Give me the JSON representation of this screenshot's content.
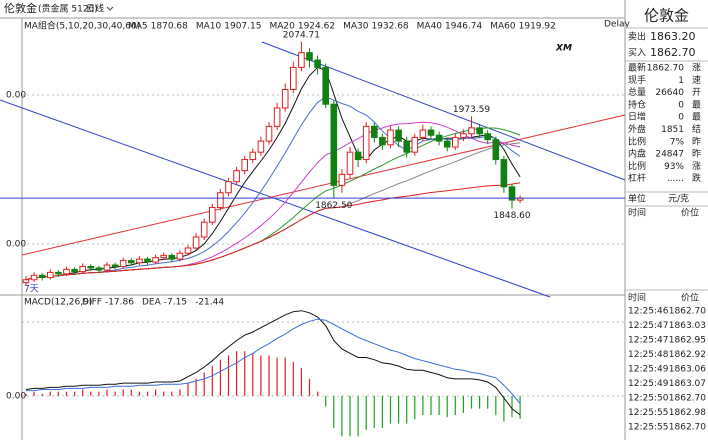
{
  "header": {
    "name": "伦敦金",
    "code": "(贵金属 5120)",
    "period": "日线"
  },
  "indicators": {
    "label": "MA组合(5,10,20,30,40,60)",
    "items": [
      {
        "label": "MA5",
        "value": 1870.68,
        "period": 5,
        "color": "#111111"
      },
      {
        "label": "MA10",
        "value": 1907.15,
        "period": 10,
        "color": "#4a6fd0"
      },
      {
        "label": "MA20",
        "value": 1924.62,
        "period": 20,
        "color": "#d23cd2"
      },
      {
        "label": "MA30",
        "value": 1932.68,
        "period": 30,
        "color": "#2e9a2e"
      },
      {
        "label": "MA40",
        "value": 1946.74,
        "period": 40,
        "color": "#888888"
      },
      {
        "label": "MA60",
        "value": 1919.92,
        "period": 60,
        "color": "#e02020"
      }
    ]
  },
  "delay": "Delay",
  "logo": "XM",
  "left_labels": [
    "0.00",
    "0.00"
  ],
  "corner_label": "7天",
  "chart_data": {
    "type": "candlestick",
    "ylim": [
      1734,
      2107
    ],
    "annotations": [
      "2074.71",
      "1862.50",
      "1973.59",
      "1848.60"
    ],
    "candles": [
      [
        1748,
        1757,
        1744,
        1752
      ],
      [
        1752,
        1762,
        1749,
        1758
      ],
      [
        1758,
        1761,
        1751,
        1755
      ],
      [
        1755,
        1766,
        1752,
        1762
      ],
      [
        1762,
        1765,
        1756,
        1760
      ],
      [
        1760,
        1770,
        1757,
        1766
      ],
      [
        1766,
        1769,
        1759,
        1763
      ],
      [
        1763,
        1774,
        1760,
        1770
      ],
      [
        1770,
        1773,
        1764,
        1768
      ],
      [
        1768,
        1771,
        1761,
        1765
      ],
      [
        1765,
        1776,
        1762,
        1772
      ],
      [
        1772,
        1775,
        1766,
        1770
      ],
      [
        1770,
        1782,
        1767,
        1778
      ],
      [
        1778,
        1781,
        1771,
        1775
      ],
      [
        1775,
        1784,
        1772,
        1780
      ],
      [
        1780,
        1783,
        1772,
        1776
      ],
      [
        1776,
        1786,
        1773,
        1782
      ],
      [
        1782,
        1789,
        1779,
        1785
      ],
      [
        1785,
        1788,
        1776,
        1780
      ],
      [
        1780,
        1792,
        1777,
        1788
      ],
      [
        1788,
        1799,
        1785,
        1795
      ],
      [
        1795,
        1815,
        1792,
        1810
      ],
      [
        1810,
        1835,
        1806,
        1830
      ],
      [
        1830,
        1855,
        1826,
        1850
      ],
      [
        1850,
        1875,
        1846,
        1870
      ],
      [
        1870,
        1890,
        1865,
        1885
      ],
      [
        1885,
        1905,
        1880,
        1900
      ],
      [
        1900,
        1920,
        1895,
        1915
      ],
      [
        1915,
        1930,
        1910,
        1925
      ],
      [
        1925,
        1946,
        1920,
        1940
      ],
      [
        1940,
        1966,
        1935,
        1960
      ],
      [
        1960,
        1992,
        1955,
        1985
      ],
      [
        1985,
        2018,
        1980,
        2010
      ],
      [
        2010,
        2048,
        2005,
        2040
      ],
      [
        2040,
        2074.71,
        2035,
        2060
      ],
      [
        2060,
        2066,
        2040,
        2050
      ],
      [
        2050,
        2056,
        2030,
        2040
      ],
      [
        2040,
        2045,
        1985,
        1990
      ],
      [
        1990,
        1995,
        1862.5,
        1880
      ],
      [
        1880,
        1902,
        1870,
        1895
      ],
      [
        1895,
        1932,
        1890,
        1925
      ],
      [
        1925,
        1930,
        1905,
        1915
      ],
      [
        1915,
        1966,
        1910,
        1960
      ],
      [
        1960,
        1965,
        1938,
        1945
      ],
      [
        1945,
        1950,
        1928,
        1935
      ],
      [
        1935,
        1960,
        1930,
        1955
      ],
      [
        1955,
        1960,
        1932,
        1940
      ],
      [
        1940,
        1946,
        1918,
        1925
      ],
      [
        1925,
        1950,
        1920,
        1945
      ],
      [
        1945,
        1962,
        1940,
        1955
      ],
      [
        1955,
        1960,
        1942,
        1948
      ],
      [
        1948,
        1953,
        1934,
        1940
      ],
      [
        1940,
        1945,
        1926,
        1932
      ],
      [
        1932,
        1950,
        1928,
        1945
      ],
      [
        1945,
        1956,
        1940,
        1950
      ],
      [
        1950,
        1973.59,
        1946,
        1958
      ],
      [
        1958,
        1963,
        1944,
        1950
      ],
      [
        1950,
        1955,
        1936,
        1942
      ],
      [
        1942,
        1946,
        1908,
        1915
      ],
      [
        1915,
        1920,
        1870,
        1878
      ],
      [
        1878,
        1882,
        1848.6,
        1860
      ],
      [
        1860,
        1866,
        1856,
        1862.7
      ]
    ]
  },
  "macd": {
    "label": "MACD(12,26,9)",
    "diff_label": "DIFF",
    "dea_label": "DEA",
    "axis_label": "0.00",
    "ylim": [
      -32,
      90
    ],
    "diff": [
      6,
      7,
      7,
      8,
      8,
      9,
      9,
      10,
      10,
      10,
      11,
      11,
      12,
      12,
      12,
      12,
      13,
      13,
      13,
      14,
      18,
      22,
      27,
      33,
      40,
      46,
      52,
      57,
      60,
      64,
      68,
      72,
      76,
      79,
      80,
      78,
      74,
      66,
      52,
      44,
      40,
      36,
      36,
      34,
      31,
      30,
      28,
      25,
      24,
      24,
      22,
      20,
      17,
      16,
      16,
      16,
      15,
      13,
      8,
      -2,
      -12,
      -17.86
    ],
    "dea": [
      5,
      5,
      6,
      6,
      6,
      7,
      7,
      7,
      8,
      8,
      8,
      9,
      9,
      9,
      10,
      10,
      10,
      11,
      11,
      11,
      12,
      14,
      16,
      19,
      23,
      27,
      31,
      36,
      40,
      45,
      49,
      54,
      58,
      63,
      67,
      70,
      72,
      71,
      67,
      63,
      59,
      55,
      52,
      49,
      46,
      43,
      41,
      38,
      35,
      33,
      31,
      29,
      27,
      25,
      24,
      22,
      21,
      19,
      17,
      10,
      2,
      -7.15
    ],
    "hist": [
      2,
      4,
      2,
      4,
      4,
      4,
      4,
      6,
      4,
      4,
      6,
      4,
      6,
      6,
      4,
      4,
      6,
      4,
      4,
      6,
      12,
      16,
      22,
      28,
      34,
      38,
      42,
      42,
      40,
      38,
      38,
      36,
      36,
      32,
      26,
      16,
      4,
      -10,
      -30,
      -38,
      -38,
      -38,
      -32,
      -30,
      -30,
      -26,
      -26,
      -26,
      -22,
      -18,
      -18,
      -18,
      -20,
      -18,
      -16,
      -12,
      -12,
      -12,
      -18,
      -24,
      -20,
      -21.44
    ]
  },
  "panel": {
    "title": "伦敦金",
    "sell_label": "卖出",
    "sell": "1863.20",
    "buy_label": "买入",
    "buy": "1862.70",
    "rows": [
      [
        "最新",
        "1862.70",
        "涨"
      ],
      [
        "现手",
        "1",
        "速"
      ],
      [
        "总量",
        "26640",
        "开"
      ],
      [
        "持仓",
        "0",
        "最"
      ],
      [
        "日增",
        "0",
        "最"
      ],
      [
        "外盘",
        "1851",
        "结"
      ],
      [
        "比例",
        "7%",
        "昨"
      ],
      [
        "内盘",
        "24847",
        "昨"
      ],
      [
        "比例",
        "93%",
        "涨"
      ],
      [
        "杠杆",
        "......",
        "跌"
      ]
    ],
    "unit": [
      "单位",
      "元/克"
    ],
    "head1": [
      "时间",
      "价位"
    ],
    "head2": [
      "时间",
      "价位"
    ],
    "ticks": [
      [
        "12:25:46",
        "1862.70"
      ],
      [
        "12:25:47",
        "1863.03"
      ],
      [
        "12:25:47",
        "1862.95"
      ],
      [
        "12:25:48",
        "1862.92"
      ],
      [
        "12:25:49",
        "1863.06"
      ],
      [
        "12:25:49",
        "1863.07"
      ],
      [
        "12:25:50",
        "1862.70"
      ],
      [
        "12:25:55",
        "1862.98"
      ],
      [
        "12:25:55",
        "1862.70"
      ]
    ]
  }
}
